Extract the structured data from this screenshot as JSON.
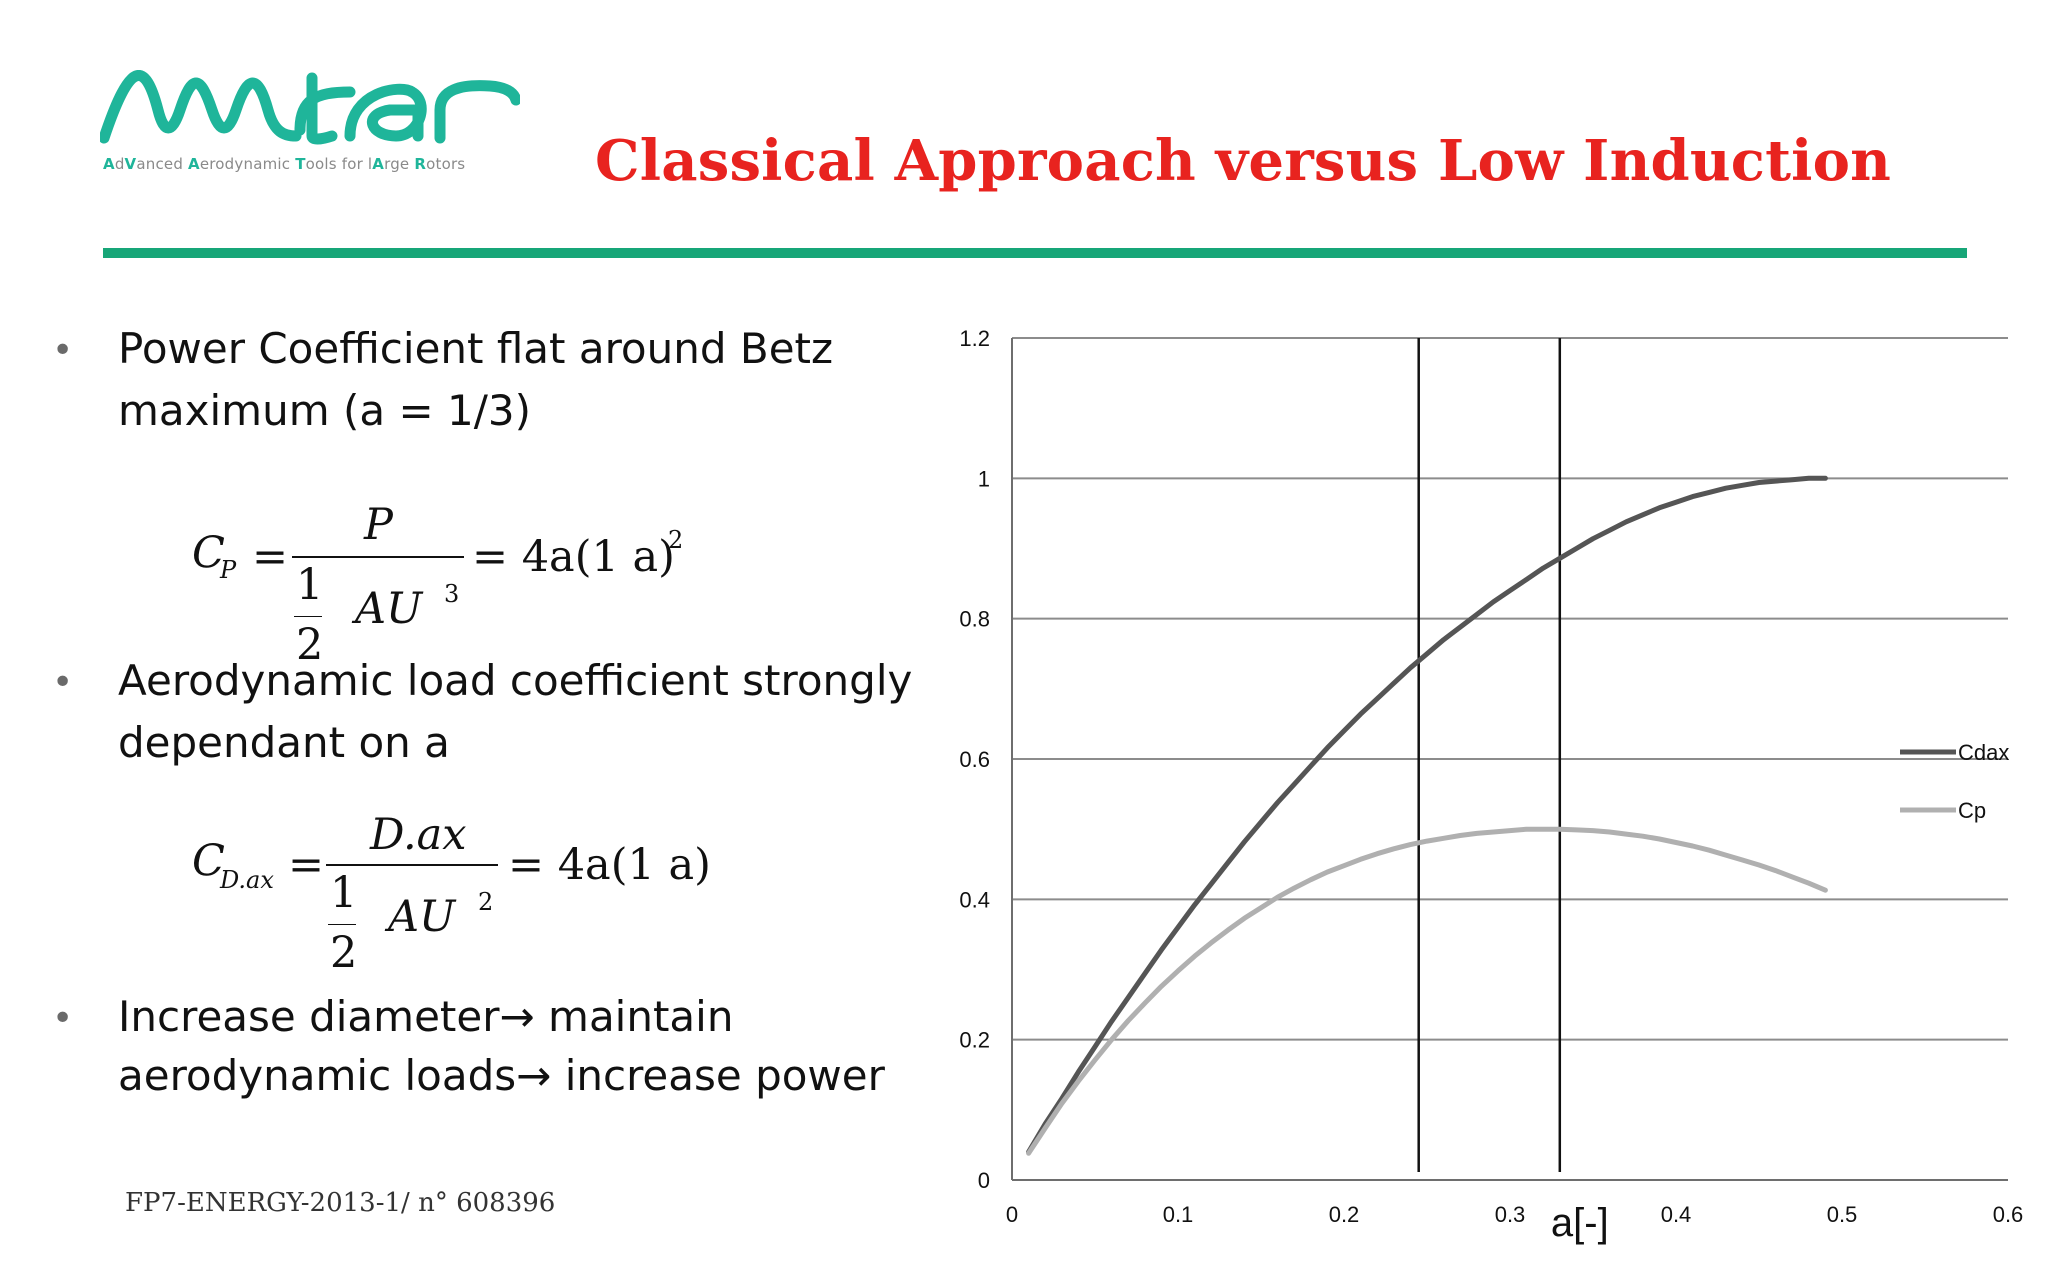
{
  "brand": {
    "logo_text": "Avatar",
    "tagline_parts": [
      {
        "text": "A",
        "accent": true
      },
      {
        "text": "d",
        "accent": false
      },
      {
        "text": "V",
        "accent": true
      },
      {
        "text": "anced ",
        "accent": false
      },
      {
        "text": "A",
        "accent": true
      },
      {
        "text": "erodynamic ",
        "accent": false
      },
      {
        "text": "T",
        "accent": true
      },
      {
        "text": "ools for l",
        "accent": false
      },
      {
        "text": "A",
        "accent": true
      },
      {
        "text": "rge ",
        "accent": false
      },
      {
        "text": "R",
        "accent": true
      },
      {
        "text": "otors",
        "accent": false
      }
    ],
    "accent_color": "#1fb59a"
  },
  "slide": {
    "title": "Classical Approach versus Low Induction",
    "title_color": "#e8231f",
    "rule_color": "#17a678",
    "footer": "FP7-ENERGY-2013-1/ n° 608396"
  },
  "bullets": [
    {
      "lines": [
        "Power Coefficient  flat around  Betz",
        "maximum (a = 1/3)"
      ]
    },
    {
      "lines": [
        "Aerodynamic  load coefficient strongly",
        "dependant  on a"
      ]
    },
    {
      "lines": [
        "Increase diameter→  maintain",
        "aerodynamic loads→  increase power"
      ]
    }
  ],
  "bullet_glyph": "•",
  "formulas": {
    "cp": {
      "lhs": "C",
      "lhs_sub": "P",
      "eq": "=",
      "numerator": "P",
      "den_num": "1",
      "den_den": "2",
      "den_var": "AU",
      "den_exp": "3",
      "rhs": "= 4a(1    a)",
      "rhs_exp": "2"
    },
    "cd": {
      "lhs": "C",
      "lhs_sub": "D.ax",
      "eq": "=",
      "numerator": "D.ax",
      "den_num": "1",
      "den_den": "2",
      "den_var": "AU",
      "den_exp": "2",
      "rhs": "= 4a(1    a)"
    }
  },
  "chart_data": {
    "type": "line",
    "xlabel": "a[-]",
    "ylabel": "",
    "xlim": [
      0,
      0.6
    ],
    "ylim": [
      0,
      1.2
    ],
    "x_ticks": [
      "0",
      "0.1",
      "0.2",
      "0.3",
      "0.4",
      "0.5",
      "0.6"
    ],
    "y_ticks": [
      "0",
      "0.2",
      "0.4",
      "0.6",
      "0.8",
      "1",
      "1.2"
    ],
    "grid": "horizontal",
    "legend": "right",
    "vertical_lines": [
      0.245,
      0.33
    ],
    "series": [
      {
        "name": "Cdax",
        "color": "#555555",
        "x": [
          0.01,
          0.02,
          0.03,
          0.04,
          0.05,
          0.06,
          0.07,
          0.08,
          0.09,
          0.1,
          0.11,
          0.12,
          0.13,
          0.14,
          0.15,
          0.16,
          0.17,
          0.18,
          0.19,
          0.2,
          0.21,
          0.22,
          0.23,
          0.24,
          0.25,
          0.26,
          0.27,
          0.28,
          0.29,
          0.3,
          0.31,
          0.32,
          0.33,
          0.34,
          0.35,
          0.36,
          0.37,
          0.38,
          0.39,
          0.4,
          0.41,
          0.42,
          0.43,
          0.44,
          0.45,
          0.46,
          0.47,
          0.48,
          0.49
        ],
        "y": [
          0.04,
          0.08,
          0.116,
          0.154,
          0.19,
          0.226,
          0.26,
          0.294,
          0.328,
          0.36,
          0.392,
          0.422,
          0.452,
          0.482,
          0.51,
          0.538,
          0.564,
          0.59,
          0.616,
          0.64,
          0.664,
          0.686,
          0.708,
          0.73,
          0.75,
          0.77,
          0.788,
          0.806,
          0.824,
          0.84,
          0.856,
          0.872,
          0.886,
          0.9,
          0.914,
          0.926,
          0.938,
          0.948,
          0.958,
          0.966,
          0.974,
          0.98,
          0.986,
          0.99,
          0.994,
          0.996,
          0.998,
          1.0,
          1.0
        ]
      },
      {
        "name": "Cp",
        "color": "#b0b0b0",
        "x": [
          0.01,
          0.02,
          0.03,
          0.04,
          0.05,
          0.06,
          0.07,
          0.08,
          0.09,
          0.1,
          0.11,
          0.12,
          0.13,
          0.14,
          0.15,
          0.16,
          0.17,
          0.18,
          0.19,
          0.2,
          0.21,
          0.22,
          0.23,
          0.24,
          0.25,
          0.26,
          0.27,
          0.28,
          0.29,
          0.3,
          0.31,
          0.32,
          0.33,
          0.34,
          0.35,
          0.36,
          0.37,
          0.38,
          0.39,
          0.4,
          0.41,
          0.42,
          0.43,
          0.44,
          0.45,
          0.46,
          0.47,
          0.48,
          0.49
        ],
        "y": [
          0.038,
          0.074,
          0.109,
          0.141,
          0.171,
          0.2,
          0.227,
          0.252,
          0.276,
          0.298,
          0.319,
          0.338,
          0.356,
          0.373,
          0.388,
          0.403,
          0.416,
          0.428,
          0.439,
          0.448,
          0.457,
          0.465,
          0.472,
          0.478,
          0.483,
          0.487,
          0.491,
          0.494,
          0.496,
          0.498,
          0.5,
          0.5,
          0.5,
          0.499,
          0.498,
          0.496,
          0.493,
          0.49,
          0.486,
          0.481,
          0.476,
          0.47,
          0.463,
          0.456,
          0.449,
          0.441,
          0.432,
          0.423,
          0.413
        ]
      }
    ]
  }
}
